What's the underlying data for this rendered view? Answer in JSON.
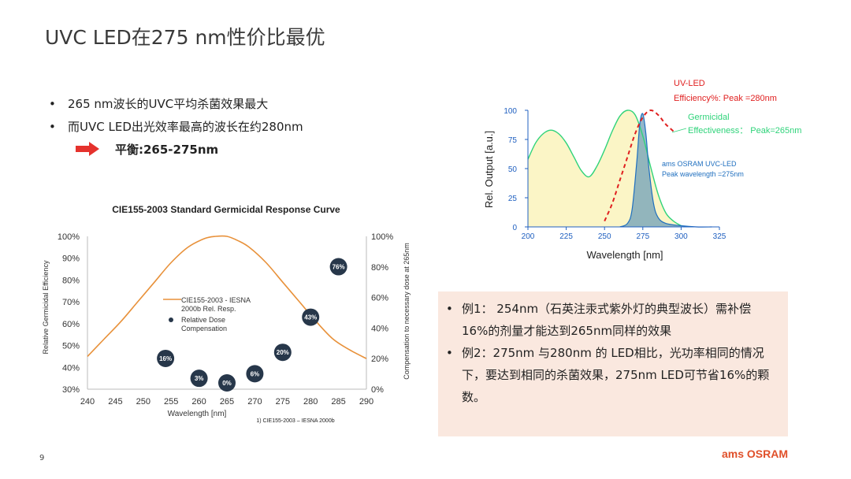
{
  "slide": {
    "title": "UVC LED在275 nm性价比最优",
    "page_number": "9",
    "logo": "ams OSRAM"
  },
  "bullets": [
    "265 nm波长的UVC平均杀菌效果最大",
    "而UVC LED出光效率最高的波长在约280nm"
  ],
  "balance": "平衡:265-275nm",
  "notes": {
    "line1": "例1：  254nm（石英注汞式紫外灯的典型波长）需补偿",
    "line2": "16%的剂量才能达到265nm同样的效果",
    "line3": "例2：275nm 与280nm 的 LED相比，光功率相同的情况",
    "line4": "下，要达到相同的杀菌效果，275nm LED可节省16%的颗",
    "line5": "数。"
  },
  "colors": {
    "curve_orange": "#e8913a",
    "uv_led_red": "#e02020",
    "germicidal_green": "#2fd37a",
    "osram_blue": "#1f6fbf",
    "axis_blue": "#2060c0",
    "fill_yellow": "#fbf5c6",
    "dot_dark": "#27374a",
    "note_bg": "#fae8df",
    "logo_orange": "#e0502a",
    "arrow_red": "#e5322d"
  },
  "chart_data": [
    {
      "type": "line",
      "title": "CIE155-2003 Standard Germicidal Response Curve",
      "xlabel": "Wavelength  [nm]",
      "ylabel": "Relative  Germicidal Efficiency",
      "y2label": "Compensation  to necessary  dose at 265nm",
      "xlim": [
        240,
        290
      ],
      "ylim": [
        30,
        100
      ],
      "y2lim": [
        0,
        100
      ],
      "x_ticks": [
        240,
        245,
        250,
        255,
        260,
        265,
        270,
        275,
        280,
        285,
        290
      ],
      "y_ticks": [
        "30%",
        "40%",
        "50%",
        "60%",
        "70%",
        "80%",
        "90%",
        "100%"
      ],
      "y2_ticks": [
        "0%",
        "20%",
        "40%",
        "60%",
        "80%",
        "100%"
      ],
      "grid": false,
      "legend_position": "center",
      "series": [
        {
          "name": "CIE155-2003 - IESNA 2000b Rel. Resp.",
          "x": [
            240,
            243,
            246,
            249,
            252,
            255,
            258,
            261,
            263,
            265,
            267,
            269,
            272,
            275,
            278,
            281,
            284,
            287,
            290
          ],
          "y": [
            45,
            53,
            61,
            70,
            79,
            88,
            95,
            99,
            100,
            100,
            98,
            95,
            88,
            79,
            70,
            61,
            53,
            48,
            44
          ]
        },
        {
          "name": "Relative Dose Compensation",
          "markers": [
            {
              "x": 254,
              "y": 16,
              "label": "16%"
            },
            {
              "x": 260,
              "y": 3,
              "label": "3%"
            },
            {
              "x": 265,
              "y": 0,
              "label": "0%"
            },
            {
              "x": 270,
              "y": 6,
              "label": "6%"
            },
            {
              "x": 275,
              "y": 20,
              "label": "20%"
            },
            {
              "x": 280,
              "y": 43,
              "label": "43%"
            },
            {
              "x": 285,
              "y": 76,
              "label": "76%"
            }
          ]
        }
      ],
      "footnote": "1) CIE155-2003  – IESNA  2000b"
    },
    {
      "type": "line",
      "xlabel": "Wavelength [nm]",
      "ylabel": "Rel. Output [a.u.]",
      "xlim": [
        200,
        325
      ],
      "ylim": [
        0,
        100
      ],
      "x_ticks": [
        200,
        225,
        250,
        275,
        300,
        325
      ],
      "y_ticks": [
        0,
        25,
        50,
        75,
        100
      ],
      "series": [
        {
          "name": "Germicidal Effectiveness",
          "label": "Germicidal\nEffectiveness：  Peak=265nm",
          "x": [
            200,
            205,
            210,
            215,
            220,
            225,
            230,
            235,
            240,
            245,
            250,
            255,
            260,
            265,
            270,
            275,
            280,
            285,
            290,
            295,
            300
          ],
          "y": [
            58,
            72,
            80,
            83,
            80,
            72,
            60,
            48,
            43,
            52,
            66,
            82,
            95,
            100,
            96,
            78,
            52,
            28,
            12,
            5,
            1
          ]
        },
        {
          "name": "ams OSRAM UVC-LED",
          "label": "ams OSRAM UVC-LED\nPeak wavelength =275nm",
          "x": [
            260,
            265,
            268,
            271,
            273,
            275,
            277,
            279,
            282,
            285,
            290,
            300,
            310,
            320
          ],
          "y": [
            0,
            3,
            15,
            55,
            88,
            97,
            80,
            50,
            20,
            8,
            3,
            1,
            0,
            0
          ]
        },
        {
          "name": "UV-LED Efficiency%",
          "label": "UV-LED\nEfficiency%:  Peak =280nm",
          "x": [
            250,
            255,
            260,
            265,
            270,
            275,
            280,
            285,
            290,
            295
          ],
          "y": [
            5,
            20,
            40,
            60,
            80,
            94,
            100,
            96,
            88,
            82
          ]
        }
      ]
    }
  ]
}
